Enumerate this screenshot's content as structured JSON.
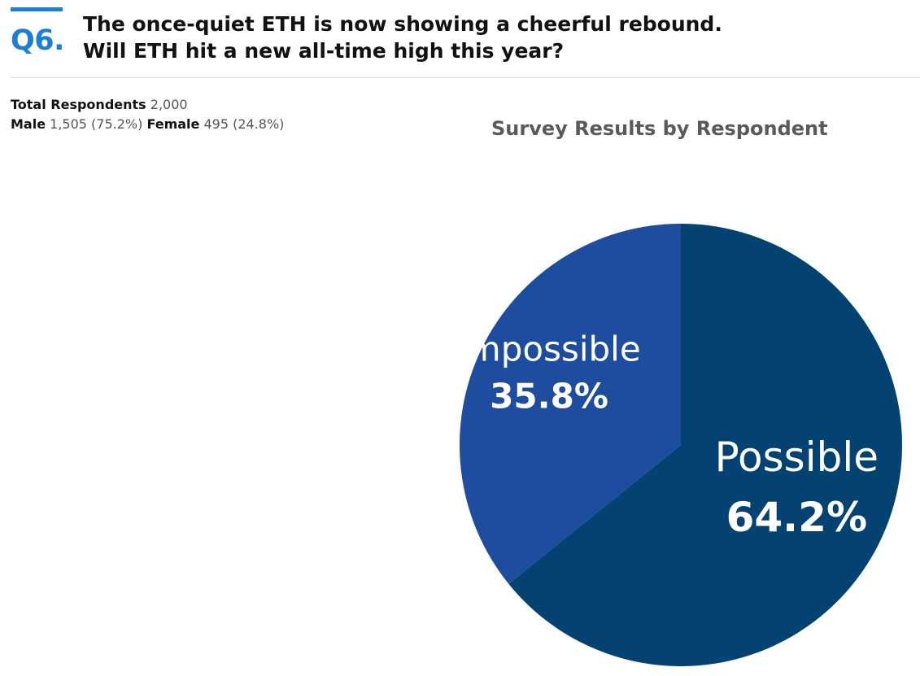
{
  "question": {
    "number": "Q6.",
    "line1": "The once-quiet ETH is now showing a cheerful rebound.",
    "line2": "Will ETH hit a new all-time high this year?",
    "accent_color": "#1c7fd6"
  },
  "respondents": {
    "total_label": "Total Respondents",
    "total_value": "2,000",
    "male_label": "Male",
    "male_value": "1,505 (75.2%)",
    "female_label": "Female",
    "female_value": "495 (24.8%)"
  },
  "chart_data": {
    "type": "pie",
    "title": "Survey Results by Respondent",
    "slices": [
      {
        "label": "Possible",
        "value": 64.2,
        "display": "64.2%",
        "color": "#044272"
      },
      {
        "label": "Impossible",
        "value": 35.8,
        "display": "35.8%",
        "color": "#1e4c9e"
      }
    ],
    "start": "top",
    "direction": "clockwise",
    "legend": "none"
  }
}
